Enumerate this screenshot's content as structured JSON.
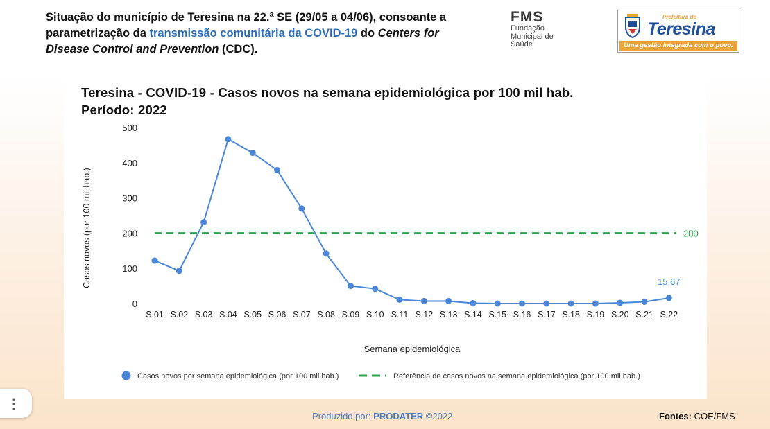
{
  "header": {
    "line1": "Situação do município de Teresina na 22.ª SE (29/05 a 04/06), consoante a",
    "line2_pre": "parametrização da ",
    "line2_highlight": "transmissão comunitária da COVID-19",
    "line2_post": " do ",
    "line2_italic": "Centers for",
    "line3_italic": "Disease Control and Prevention",
    "line3_post": " (CDC)."
  },
  "fms_logo": {
    "big": "FMS",
    "line1": "Fundação",
    "line2": "Municipal de",
    "line3": "Saúde"
  },
  "prefeitura_logo": {
    "small": "Prefeitura de",
    "city": "Teresina",
    "slogan": "Uma gestão integrada com o povo."
  },
  "chart_data": {
    "type": "line",
    "title": "Teresina - COVID-19 - Casos novos na semana epidemiológica por 100 mil hab.",
    "subtitle": "Período: 2022",
    "xlabel": "Semana epidemiológica",
    "ylabel": "Casos novos (por 100 mil hab.)",
    "ylim": [
      0,
      500
    ],
    "yticks": [
      "0",
      "100",
      "200",
      "300",
      "400",
      "500"
    ],
    "categories": [
      "S.01",
      "S.02",
      "S.03",
      "S.04",
      "S.05",
      "S.06",
      "S.07",
      "S.08",
      "S.09",
      "S.10",
      "S.11",
      "S.12",
      "S.13",
      "S.14",
      "S.15",
      "S.16",
      "S.17",
      "S.18",
      "S.19",
      "S.20",
      "S.21",
      "S.22"
    ],
    "series": [
      {
        "name": "Casos novos por semana epidemiológica (por 100 mil hab.)",
        "color": "#4a86d8",
        "values": [
          122,
          93,
          231,
          467,
          428,
          379,
          270,
          142,
          50,
          42,
          11,
          7,
          7,
          1,
          0,
          0,
          0,
          0,
          0,
          2,
          5,
          15.67
        ]
      }
    ],
    "reference": {
      "name": "Referência de casos novos na semana epidemiológica (por 100 mil hab.)",
      "value": 200,
      "label": "200",
      "color": "#2ca24c"
    },
    "last_value_label": "15,67",
    "grid": false,
    "legend_position": "bottom"
  },
  "footer": {
    "produced_pre": "Produzido por: ",
    "produced_org": "PRODATER",
    "produced_post": " ©2022",
    "sources_label": "Fontes:",
    "sources_value": " COE/FMS"
  },
  "menu_icon": "vertical-dots-icon"
}
